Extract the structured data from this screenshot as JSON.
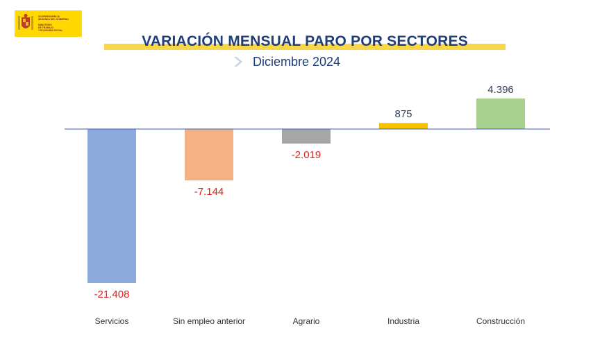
{
  "header": {
    "logo_lines": [
      "VICEPRESIDENCIA",
      "SEGUNDA DEL GOBIERNO",
      "MINISTERIO",
      "DE TRABAJO",
      "Y ECONOMÍA SOCIAL"
    ],
    "title": "VARIACIÓN MENSUAL PARO POR SECTORES",
    "subtitle": "Diciembre 2024"
  },
  "colors": {
    "title": "#1f3e7a",
    "band": "#f7d64a",
    "baseline": "#3a5cb8",
    "negative_label": "#e0201e",
    "positive_label": "#2f3b57"
  },
  "chart_data": {
    "type": "bar",
    "categories": [
      "Servicios",
      "Sin empleo anterior",
      "Agrario",
      "Industria",
      "Construcción"
    ],
    "values": [
      -21408,
      -7144,
      -2019,
      875,
      4396
    ],
    "value_labels": [
      "-21.408",
      "-7.144",
      "-2.019",
      "875",
      "4.396"
    ],
    "bar_colors": [
      "#8ea9dc",
      "#f3b185",
      "#a6a6a6",
      "#f5c200",
      "#a8d18d"
    ],
    "ylim": [
      -21408,
      4396
    ],
    "grid": false,
    "legend": "none"
  }
}
